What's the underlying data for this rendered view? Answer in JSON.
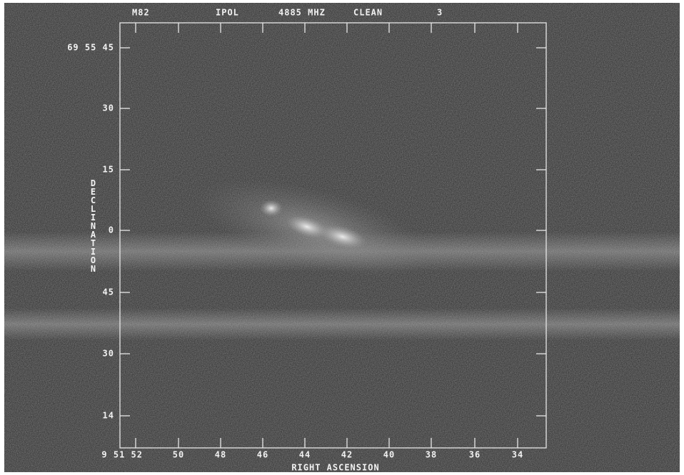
{
  "header": {
    "source": "M82",
    "polarization": "IPOL",
    "frequency": "4885 MHZ",
    "method": "CLEAN",
    "number": "3"
  },
  "y_axis": {
    "title": "DECLINATION",
    "tick_labels": [
      "69 55 45",
      "30",
      "15",
      "0",
      "45",
      "30",
      "14"
    ]
  },
  "x_axis": {
    "title": "RIGHT ASCENSION",
    "tick_labels": [
      "9 51 52",
      "50",
      "48",
      "46",
      "44",
      "42",
      "40",
      "38",
      "36",
      "34"
    ]
  }
}
